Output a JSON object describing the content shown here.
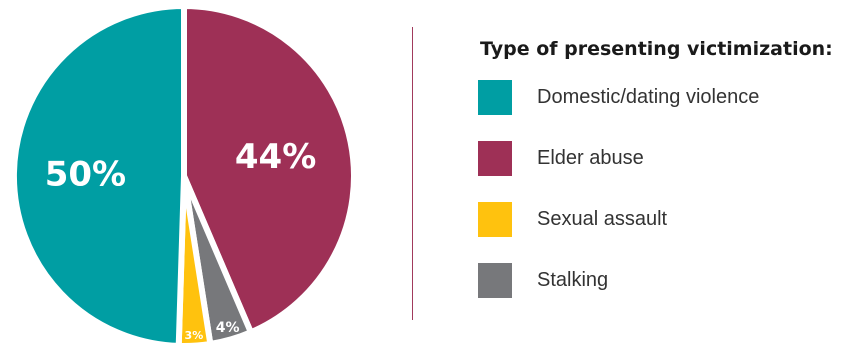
{
  "chart_data": {
    "type": "pie",
    "legend_title": "Type of presenting victimization:",
    "legend_position": "right",
    "slices": [
      {
        "label": "Domestic/dating violence",
        "value": 50,
        "display": "50%",
        "color": "#009ea3"
      },
      {
        "label": "Elder abuse",
        "value": 44,
        "display": "44%",
        "color": "#9e3056"
      },
      {
        "label": "Stalking",
        "value": 4,
        "display": "4%",
        "color": "#77787b"
      },
      {
        "label": "Sexual assault",
        "value": 3,
        "display": "3%",
        "color": "#ffc20e"
      }
    ]
  },
  "legend": {
    "items": [
      {
        "label": "Domestic/dating violence",
        "color": "#009ea3"
      },
      {
        "label": "Elder abuse",
        "color": "#9e3056"
      },
      {
        "label": "Sexual assault",
        "color": "#ffc20e"
      },
      {
        "label": "Stalking",
        "color": "#77787b"
      }
    ]
  }
}
